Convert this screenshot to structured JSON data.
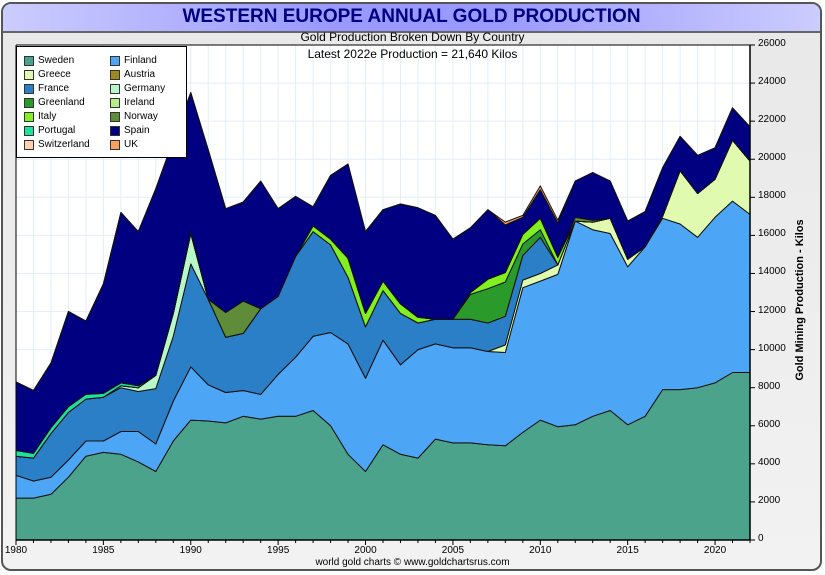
{
  "header": {
    "title": "WESTERN EUROPE ANNUAL GOLD PRODUCTION",
    "subtitle": "Gold Production Broken Down By Country",
    "subtitle2": "Latest 2022e Production = 21,640 Kilos"
  },
  "footer": "world gold charts © www.goldchartsrus.com",
  "chart_data": {
    "type": "area",
    "stacked": true,
    "title": "WESTERN EUROPE ANNUAL GOLD PRODUCTION",
    "subtitle": "Gold Production Broken Down By Country",
    "xlabel": "",
    "ylabel": "Gold Mining Production - Kilos",
    "xlim": [
      1980,
      2022
    ],
    "ylim": [
      0,
      26000
    ],
    "x_ticks": [
      "1980",
      "1985",
      "1990",
      "1995",
      "2000",
      "2005",
      "2010",
      "2015",
      "2020"
    ],
    "y_ticks": [
      "0",
      "2000",
      "4000",
      "6000",
      "8000",
      "10000",
      "12000",
      "14000",
      "16000",
      "18000",
      "20000",
      "22000",
      "24000",
      "26000"
    ],
    "grid": true,
    "legend_position": "top-left",
    "x": [
      1980,
      1981,
      1982,
      1983,
      1984,
      1985,
      1986,
      1987,
      1988,
      1989,
      1990,
      1991,
      1992,
      1993,
      1994,
      1995,
      1996,
      1997,
      1998,
      1999,
      2000,
      2001,
      2002,
      2003,
      2004,
      2005,
      2006,
      2007,
      2008,
      2009,
      2010,
      2011,
      2012,
      2013,
      2014,
      2015,
      2016,
      2017,
      2018,
      2019,
      2020,
      2021,
      2022
    ],
    "series": [
      {
        "name": "Sweden",
        "color": "#4aa38a",
        "values": [
          2200,
          2200,
          2400,
          3300,
          4400,
          4600,
          4500,
          4100,
          3600,
          5200,
          6300,
          6250,
          6150,
          6500,
          6350,
          6500,
          6500,
          6800,
          6000,
          4500,
          3600,
          5000,
          4500,
          4300,
          5300,
          5100,
          5100,
          5000,
          4950,
          5650,
          6300,
          5950,
          6050,
          6500,
          6800,
          6050,
          6500,
          7900,
          7900,
          8000,
          8250,
          8800,
          8800
        ]
      },
      {
        "name": "Finland",
        "color": "#4da6f5",
        "values": [
          1200,
          900,
          900,
          900,
          800,
          600,
          1200,
          1600,
          1450,
          2100,
          2800,
          1900,
          1600,
          1350,
          1300,
          2200,
          3100,
          3900,
          4900,
          5800,
          4900,
          5500,
          4700,
          5700,
          5000,
          5000,
          5000,
          4900,
          4900,
          7600,
          7300,
          8000,
          10700,
          9800,
          9300,
          8300,
          8900,
          9000,
          8700,
          7900,
          8700,
          9000,
          8300
        ]
      },
      {
        "name": "Greece",
        "color": "#e0fbb0",
        "values": [
          0,
          0,
          0,
          0,
          0,
          0,
          0,
          0,
          0,
          0,
          0,
          0,
          0,
          0,
          0,
          0,
          0,
          0,
          0,
          0,
          0,
          0,
          0,
          0,
          0,
          0,
          0,
          0,
          400,
          400,
          400,
          500,
          0,
          400,
          800,
          400,
          0,
          100,
          2800,
          2300,
          2000,
          3200,
          2800
        ]
      },
      {
        "name": "France",
        "color": "#2a7fc7",
        "values": [
          1000,
          1200,
          2300,
          2500,
          2200,
          2300,
          2300,
          2100,
          2900,
          3400,
          5400,
          4500,
          2900,
          3000,
          4500,
          4100,
          5300,
          5500,
          4600,
          3500,
          2700,
          2600,
          2700,
          1400,
          1300,
          1500,
          1500,
          1500,
          1500,
          1300,
          1900,
          0,
          0,
          0,
          0,
          0,
          0,
          0,
          0,
          0,
          0,
          0,
          0
        ]
      },
      {
        "name": "Austria",
        "color": "#9b8a22",
        "values": [
          0,
          0,
          0,
          0,
          0,
          0,
          0,
          0,
          0,
          0,
          0,
          0,
          0,
          0,
          0,
          0,
          0,
          0,
          0,
          0,
          0,
          0,
          0,
          0,
          0,
          0,
          0,
          0,
          0,
          0,
          0,
          0,
          0,
          0,
          0,
          0,
          0,
          0,
          0,
          0,
          0,
          0,
          0
        ]
      },
      {
        "name": "Germany",
        "color": "#b8f7c8",
        "values": [
          0,
          0,
          0,
          0,
          0,
          0,
          100,
          200,
          700,
          1200,
          1600,
          0,
          0,
          0,
          0,
          0,
          0,
          0,
          0,
          0,
          0,
          0,
          0,
          0,
          0,
          0,
          0,
          0,
          0,
          0,
          0,
          0,
          0,
          0,
          0,
          0,
          0,
          0,
          0,
          0,
          0,
          0,
          0
        ]
      },
      {
        "name": "Greenland",
        "color": "#2a9a2a",
        "values": [
          0,
          0,
          0,
          0,
          0,
          0,
          0,
          0,
          0,
          0,
          0,
          0,
          0,
          0,
          0,
          0,
          0,
          0,
          0,
          0,
          0,
          0,
          0,
          0,
          0,
          0,
          1300,
          1800,
          1800,
          600,
          400,
          0,
          0,
          0,
          0,
          0,
          0,
          0,
          0,
          0,
          0,
          0,
          0
        ]
      },
      {
        "name": "Ireland",
        "color": "#b8ee88",
        "values": [
          0,
          0,
          0,
          0,
          0,
          0,
          0,
          0,
          0,
          0,
          0,
          0,
          0,
          0,
          0,
          0,
          0,
          0,
          0,
          0,
          0,
          0,
          0,
          0,
          0,
          0,
          0,
          0,
          0,
          0,
          0,
          0,
          0,
          0,
          0,
          0,
          0,
          0,
          0,
          0,
          0,
          0,
          0
        ]
      },
      {
        "name": "Italy",
        "color": "#80f020",
        "values": [
          0,
          0,
          0,
          0,
          0,
          0,
          0,
          0,
          0,
          0,
          0,
          0,
          0,
          0,
          0,
          0,
          0,
          300,
          300,
          1000,
          700,
          500,
          500,
          300,
          0,
          0,
          100,
          500,
          500,
          500,
          600,
          400,
          0,
          0,
          0,
          0,
          0,
          0,
          0,
          0,
          0,
          0,
          0
        ]
      },
      {
        "name": "Norway",
        "color": "#5e8c38",
        "values": [
          0,
          0,
          0,
          0,
          0,
          0,
          0,
          0,
          0,
          0,
          0,
          0,
          1300,
          1700,
          0,
          0,
          0,
          0,
          0,
          0,
          0,
          0,
          0,
          0,
          0,
          0,
          0,
          0,
          0,
          0,
          0,
          0,
          200,
          100,
          0,
          0,
          0,
          0,
          0,
          0,
          0,
          0,
          0
        ]
      },
      {
        "name": "Portugal",
        "color": "#20e0a0",
        "values": [
          300,
          250,
          300,
          300,
          250,
          200,
          150,
          100,
          0,
          0,
          100,
          0,
          0,
          0,
          0,
          0,
          0,
          0,
          0,
          0,
          0,
          0,
          0,
          0,
          0,
          0,
          0,
          0,
          0,
          0,
          0,
          0,
          0,
          0,
          0,
          0,
          0,
          0,
          0,
          0,
          0,
          0,
          0
        ]
      },
      {
        "name": "Spain",
        "color": "#000080",
        "values": [
          3600,
          3300,
          3400,
          5000,
          3850,
          5750,
          8950,
          8100,
          9800,
          9100,
          7300,
          7850,
          5450,
          5200,
          6700,
          4600,
          3150,
          1000,
          3350,
          4950,
          4300,
          3750,
          5250,
          5750,
          5450,
          4200,
          3400,
          3650,
          2500,
          900,
          1500,
          1800,
          1900,
          2500,
          1950,
          2000,
          1850,
          2550,
          1800,
          2000,
          1650,
          1700,
          1800
        ]
      },
      {
        "name": "Switzerland",
        "color": "#ffd0b0",
        "values": [
          0,
          0,
          0,
          0,
          0,
          0,
          0,
          0,
          0,
          0,
          0,
          0,
          0,
          0,
          0,
          0,
          0,
          0,
          0,
          0,
          0,
          0,
          0,
          0,
          0,
          0,
          0,
          0,
          0,
          0,
          0,
          0,
          0,
          0,
          0,
          0,
          0,
          0,
          0,
          0,
          0,
          0,
          0
        ]
      },
      {
        "name": "UK",
        "color": "#f7a060",
        "values": [
          0,
          0,
          0,
          0,
          0,
          0,
          0,
          0,
          0,
          0,
          0,
          0,
          0,
          0,
          0,
          0,
          0,
          0,
          0,
          0,
          0,
          0,
          0,
          0,
          0,
          0,
          0,
          0,
          150,
          100,
          200,
          150,
          0,
          0,
          0,
          0,
          0,
          0,
          0,
          0,
          0,
          0,
          0
        ]
      }
    ]
  },
  "legend": {
    "items": [
      {
        "label": "Sweden",
        "color": "#4aa38a"
      },
      {
        "label": "Finland",
        "color": "#4da6f5"
      },
      {
        "label": "Greece",
        "color": "#e0fbb0"
      },
      {
        "label": "Austria",
        "color": "#9b8a22"
      },
      {
        "label": "France",
        "color": "#2a7fc7"
      },
      {
        "label": "Germany",
        "color": "#b8f7c8"
      },
      {
        "label": "Greenland",
        "color": "#2a9a2a"
      },
      {
        "label": "Ireland",
        "color": "#b8ee88"
      },
      {
        "label": "Italy",
        "color": "#80f020"
      },
      {
        "label": "Norway",
        "color": "#5e8c38"
      },
      {
        "label": "Portugal",
        "color": "#20e0a0"
      },
      {
        "label": "Spain",
        "color": "#000080"
      },
      {
        "label": "Switzerland",
        "color": "#ffd0b0"
      },
      {
        "label": "UK",
        "color": "#f7a060"
      }
    ]
  }
}
